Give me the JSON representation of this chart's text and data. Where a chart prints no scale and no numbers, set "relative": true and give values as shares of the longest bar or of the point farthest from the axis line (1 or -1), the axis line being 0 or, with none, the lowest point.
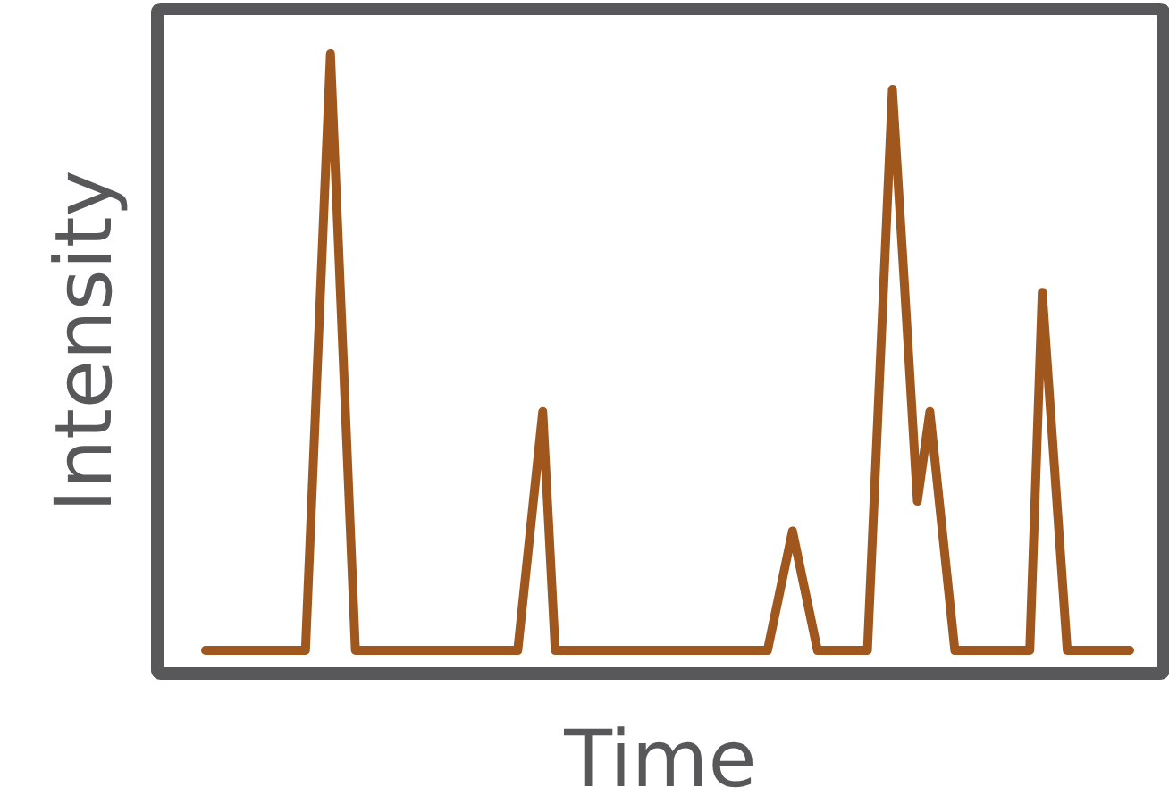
{
  "chart_data": {
    "type": "line",
    "xlabel": "Time",
    "ylabel": "Intensity",
    "relative": true,
    "line_style": "solid",
    "categories": [
      null,
      null,
      null,
      null,
      null,
      null,
      null,
      null,
      null,
      null,
      null,
      null,
      null,
      null,
      null,
      null,
      null,
      null,
      null,
      null,
      null,
      null,
      null,
      null,
      null,
      null,
      null,
      null,
      null,
      null,
      null,
      null,
      null,
      null,
      null,
      null,
      null,
      null,
      null,
      null,
      null,
      null,
      null,
      null,
      null,
      null,
      null,
      null,
      null,
      null,
      null,
      null,
      null,
      null,
      null,
      null,
      null,
      null,
      null,
      null,
      null,
      null,
      null,
      null,
      null,
      null,
      null,
      null,
      null,
      null,
      null,
      null,
      null,
      null,
      null
    ],
    "series": [
      {
        "color": "#a0571e",
        "values": [
          0,
          0,
          0,
          0,
          0,
          0,
          0,
          0,
          0,
          0.5,
          1,
          0.5,
          0,
          0,
          0,
          0,
          0,
          0,
          0,
          0,
          0,
          0,
          0,
          0,
          0,
          0,
          0.2,
          0.4,
          0,
          0,
          0,
          0,
          0,
          0,
          0,
          0,
          0,
          0,
          0,
          0,
          0,
          0,
          0,
          0,
          0,
          0,
          0.1,
          0.2,
          0.1,
          0,
          0,
          0,
          0,
          0,
          0.47,
          0.94,
          0.6,
          0.25,
          0.4,
          0.2,
          0,
          0,
          0,
          0,
          0,
          0,
          0,
          0.6,
          0.3,
          0,
          0,
          0,
          0,
          0,
          0
        ]
      }
    ]
  }
}
